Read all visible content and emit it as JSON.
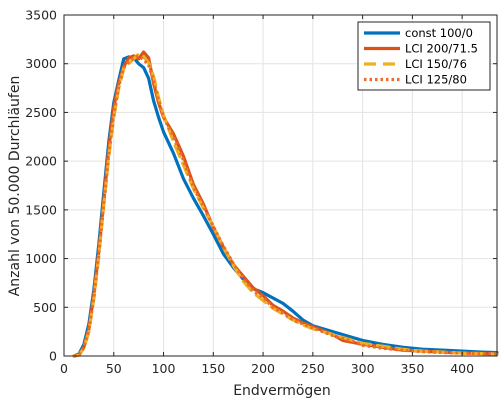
{
  "chart_data": {
    "type": "line",
    "title": "",
    "xlabel": "Endvermögen",
    "ylabel": "Anzahl von 50.000 Durchläufen",
    "xlim": [
      0,
      435
    ],
    "ylim": [
      0,
      3500
    ],
    "xticks": [
      0,
      50,
      100,
      150,
      200,
      250,
      300,
      350,
      400
    ],
    "yticks": [
      0,
      500,
      1000,
      1500,
      2000,
      2500,
      3000,
      3500
    ],
    "grid": true,
    "legend_position": "top-right",
    "series": [
      {
        "name": "const 100/0",
        "color": "#0072BD",
        "dash": "solid",
        "points": [
          [
            10,
            0
          ],
          [
            15,
            20
          ],
          [
            20,
            120
          ],
          [
            25,
            330
          ],
          [
            30,
            680
          ],
          [
            35,
            1150
          ],
          [
            40,
            1680
          ],
          [
            45,
            2200
          ],
          [
            50,
            2600
          ],
          [
            55,
            2830
          ],
          [
            60,
            3050
          ],
          [
            65,
            3070
          ],
          [
            70,
            3060
          ],
          [
            75,
            3000
          ],
          [
            80,
            2960
          ],
          [
            85,
            2850
          ],
          [
            90,
            2620
          ],
          [
            95,
            2450
          ],
          [
            100,
            2300
          ],
          [
            110,
            2080
          ],
          [
            120,
            1820
          ],
          [
            130,
            1620
          ],
          [
            140,
            1440
          ],
          [
            150,
            1250
          ],
          [
            160,
            1050
          ],
          [
            170,
            910
          ],
          [
            180,
            790
          ],
          [
            190,
            690
          ],
          [
            200,
            650
          ],
          [
            220,
            540
          ],
          [
            230,
            460
          ],
          [
            240,
            370
          ],
          [
            250,
            310
          ],
          [
            270,
            250
          ],
          [
            290,
            190
          ],
          [
            300,
            160
          ],
          [
            320,
            120
          ],
          [
            340,
            90
          ],
          [
            360,
            70
          ],
          [
            380,
            60
          ],
          [
            400,
            50
          ],
          [
            420,
            40
          ],
          [
            435,
            35
          ]
        ]
      },
      {
        "name": "LCI 200/71.5",
        "color": "#D95319",
        "dash": "solid",
        "points": [
          [
            10,
            0
          ],
          [
            15,
            10
          ],
          [
            20,
            90
          ],
          [
            25,
            280
          ],
          [
            30,
            630
          ],
          [
            35,
            1080
          ],
          [
            40,
            1600
          ],
          [
            45,
            2130
          ],
          [
            50,
            2550
          ],
          [
            55,
            2800
          ],
          [
            60,
            2970
          ],
          [
            65,
            3060
          ],
          [
            70,
            3080
          ],
          [
            75,
            3050
          ],
          [
            80,
            3120
          ],
          [
            85,
            3060
          ],
          [
            90,
            2800
          ],
          [
            95,
            2600
          ],
          [
            100,
            2450
          ],
          [
            110,
            2280
          ],
          [
            120,
            2050
          ],
          [
            130,
            1760
          ],
          [
            140,
            1560
          ],
          [
            150,
            1320
          ],
          [
            160,
            1120
          ],
          [
            170,
            940
          ],
          [
            180,
            820
          ],
          [
            190,
            700
          ],
          [
            200,
            620
          ],
          [
            210,
            520
          ],
          [
            220,
            460
          ],
          [
            230,
            390
          ],
          [
            240,
            340
          ],
          [
            250,
            300
          ],
          [
            270,
            220
          ],
          [
            280,
            160
          ],
          [
            300,
            120
          ],
          [
            320,
            90
          ],
          [
            340,
            60
          ],
          [
            360,
            50
          ],
          [
            380,
            40
          ],
          [
            400,
            30
          ],
          [
            420,
            25
          ],
          [
            435,
            20
          ]
        ]
      },
      {
        "name": "LCI 150/76",
        "color": "#EDB120",
        "dash": "dashed",
        "points": [
          [
            10,
            0
          ],
          [
            15,
            10
          ],
          [
            20,
            80
          ],
          [
            25,
            250
          ],
          [
            30,
            590
          ],
          [
            35,
            1030
          ],
          [
            40,
            1550
          ],
          [
            45,
            2050
          ],
          [
            50,
            2450
          ],
          [
            55,
            2750
          ],
          [
            60,
            2950
          ],
          [
            65,
            3000
          ],
          [
            70,
            3050
          ],
          [
            75,
            3100
          ],
          [
            80,
            3070
          ],
          [
            85,
            3010
          ],
          [
            90,
            2870
          ],
          [
            95,
            2650
          ],
          [
            100,
            2470
          ],
          [
            110,
            2200
          ],
          [
            120,
            1960
          ],
          [
            130,
            1720
          ],
          [
            140,
            1520
          ],
          [
            150,
            1330
          ],
          [
            160,
            1120
          ],
          [
            170,
            930
          ],
          [
            180,
            770
          ],
          [
            190,
            650
          ],
          [
            200,
            570
          ],
          [
            210,
            490
          ],
          [
            220,
            430
          ],
          [
            230,
            370
          ],
          [
            240,
            320
          ],
          [
            250,
            280
          ],
          [
            270,
            220
          ],
          [
            290,
            160
          ],
          [
            300,
            130
          ],
          [
            320,
            100
          ],
          [
            340,
            70
          ],
          [
            360,
            50
          ],
          [
            380,
            40
          ],
          [
            400,
            30
          ],
          [
            420,
            25
          ],
          [
            435,
            20
          ]
        ]
      },
      {
        "name": "LCI 125/80",
        "color": "#EF6A2B",
        "dash": "dotted",
        "points": [
          [
            10,
            0
          ],
          [
            15,
            10
          ],
          [
            20,
            90
          ],
          [
            25,
            270
          ],
          [
            30,
            610
          ],
          [
            35,
            1050
          ],
          [
            40,
            1570
          ],
          [
            45,
            2080
          ],
          [
            50,
            2480
          ],
          [
            55,
            2770
          ],
          [
            60,
            2960
          ],
          [
            65,
            3020
          ],
          [
            70,
            3060
          ],
          [
            75,
            3080
          ],
          [
            80,
            3040
          ],
          [
            85,
            2990
          ],
          [
            90,
            2830
          ],
          [
            95,
            2620
          ],
          [
            100,
            2450
          ],
          [
            110,
            2250
          ],
          [
            120,
            2010
          ],
          [
            130,
            1730
          ],
          [
            140,
            1540
          ],
          [
            150,
            1330
          ],
          [
            160,
            1130
          ],
          [
            170,
            950
          ],
          [
            180,
            800
          ],
          [
            190,
            670
          ],
          [
            200,
            600
          ],
          [
            210,
            500
          ],
          [
            220,
            440
          ],
          [
            230,
            370
          ],
          [
            240,
            330
          ],
          [
            250,
            290
          ],
          [
            270,
            210
          ],
          [
            290,
            150
          ],
          [
            300,
            110
          ],
          [
            320,
            80
          ],
          [
            340,
            60
          ],
          [
            360,
            45
          ],
          [
            380,
            35
          ],
          [
            400,
            30
          ],
          [
            420,
            25
          ],
          [
            435,
            20
          ]
        ]
      }
    ]
  }
}
